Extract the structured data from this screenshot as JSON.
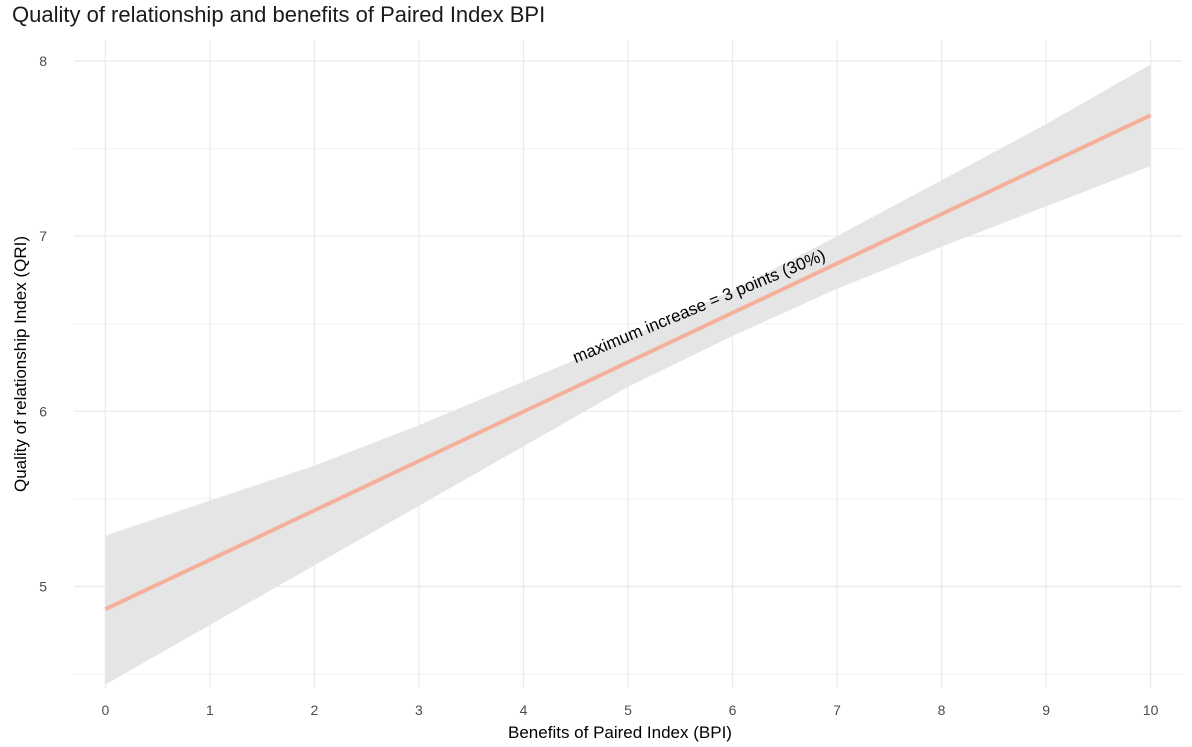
{
  "chart_data": {
    "type": "line",
    "title": "Quality of relationship and benefits of Paired Index BPI",
    "xlabel": "Benefits of Paired Index (BPI)",
    "ylabel": "Quality of relationship Index (QRI)",
    "xlim": [
      -0.3,
      10.3
    ],
    "ylim": [
      4.42,
      8.12
    ],
    "x_ticks": [
      0,
      1,
      2,
      3,
      4,
      5,
      6,
      7,
      8,
      9,
      10
    ],
    "y_ticks": [
      5,
      6,
      7,
      8
    ],
    "grid": true,
    "series": [
      {
        "fit_line": {
          "x": [
            0,
            10
          ],
          "y": [
            4.87,
            7.69
          ]
        },
        "confidence_band": {
          "x": [
            0,
            1,
            2,
            3,
            4,
            5,
            6,
            7,
            8,
            9,
            10
          ],
          "lower": [
            4.44,
            4.78,
            5.12,
            5.46,
            5.8,
            6.14,
            6.43,
            6.7,
            6.94,
            7.17,
            7.4
          ],
          "upper": [
            5.29,
            5.49,
            5.69,
            5.92,
            6.17,
            6.42,
            6.69,
            7.0,
            7.32,
            7.64,
            7.98
          ]
        }
      }
    ],
    "annotations": [
      {
        "text": "maximum increase = 3 points (30%)",
        "x": 5.7,
        "y": 6.57
      }
    ],
    "colors": {
      "line": "#f4b09a",
      "band": "#e5e5e5",
      "grid_major": "#ebebeb",
      "grid_minor": "#f3f3f3"
    }
  }
}
